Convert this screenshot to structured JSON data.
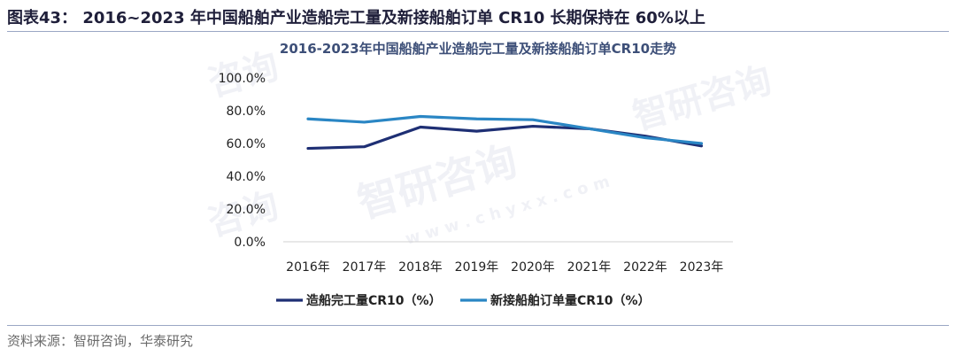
{
  "figure": {
    "caption": "图表43：  2016~2023 年中国船舶产业造船完工量及新接船舶订单 CR10 长期保持在 60%以上",
    "source": "资料来源：智研咨询，华泰研究"
  },
  "colors": {
    "series1": "#1e2f74",
    "series2": "#2a86c4",
    "text": "#222222",
    "title": "#3d4f78"
  },
  "chart_data": {
    "type": "line",
    "title": "2016-2023年中国船舶产业造船完工量及新接船舶订单CR10走势",
    "categories": [
      "2016年",
      "2017年",
      "2018年",
      "2019年",
      "2020年",
      "2021年",
      "2022年",
      "2023年"
    ],
    "y_ticks": [
      "0.0%",
      "20.0%",
      "40.0%",
      "60.0%",
      "80.0%",
      "100.0%"
    ],
    "ylim": [
      0,
      100
    ],
    "grid": false,
    "legend_position": "bottom",
    "series": [
      {
        "name": "造船完工量CR10（%）",
        "values": [
          57,
          58,
          70,
          67.5,
          70.5,
          69,
          64.5,
          58.5
        ]
      },
      {
        "name": "新接船舶订单量CR10（%）",
        "values": [
          75,
          73,
          76.5,
          75,
          74.5,
          69,
          63.5,
          60
        ]
      }
    ]
  }
}
